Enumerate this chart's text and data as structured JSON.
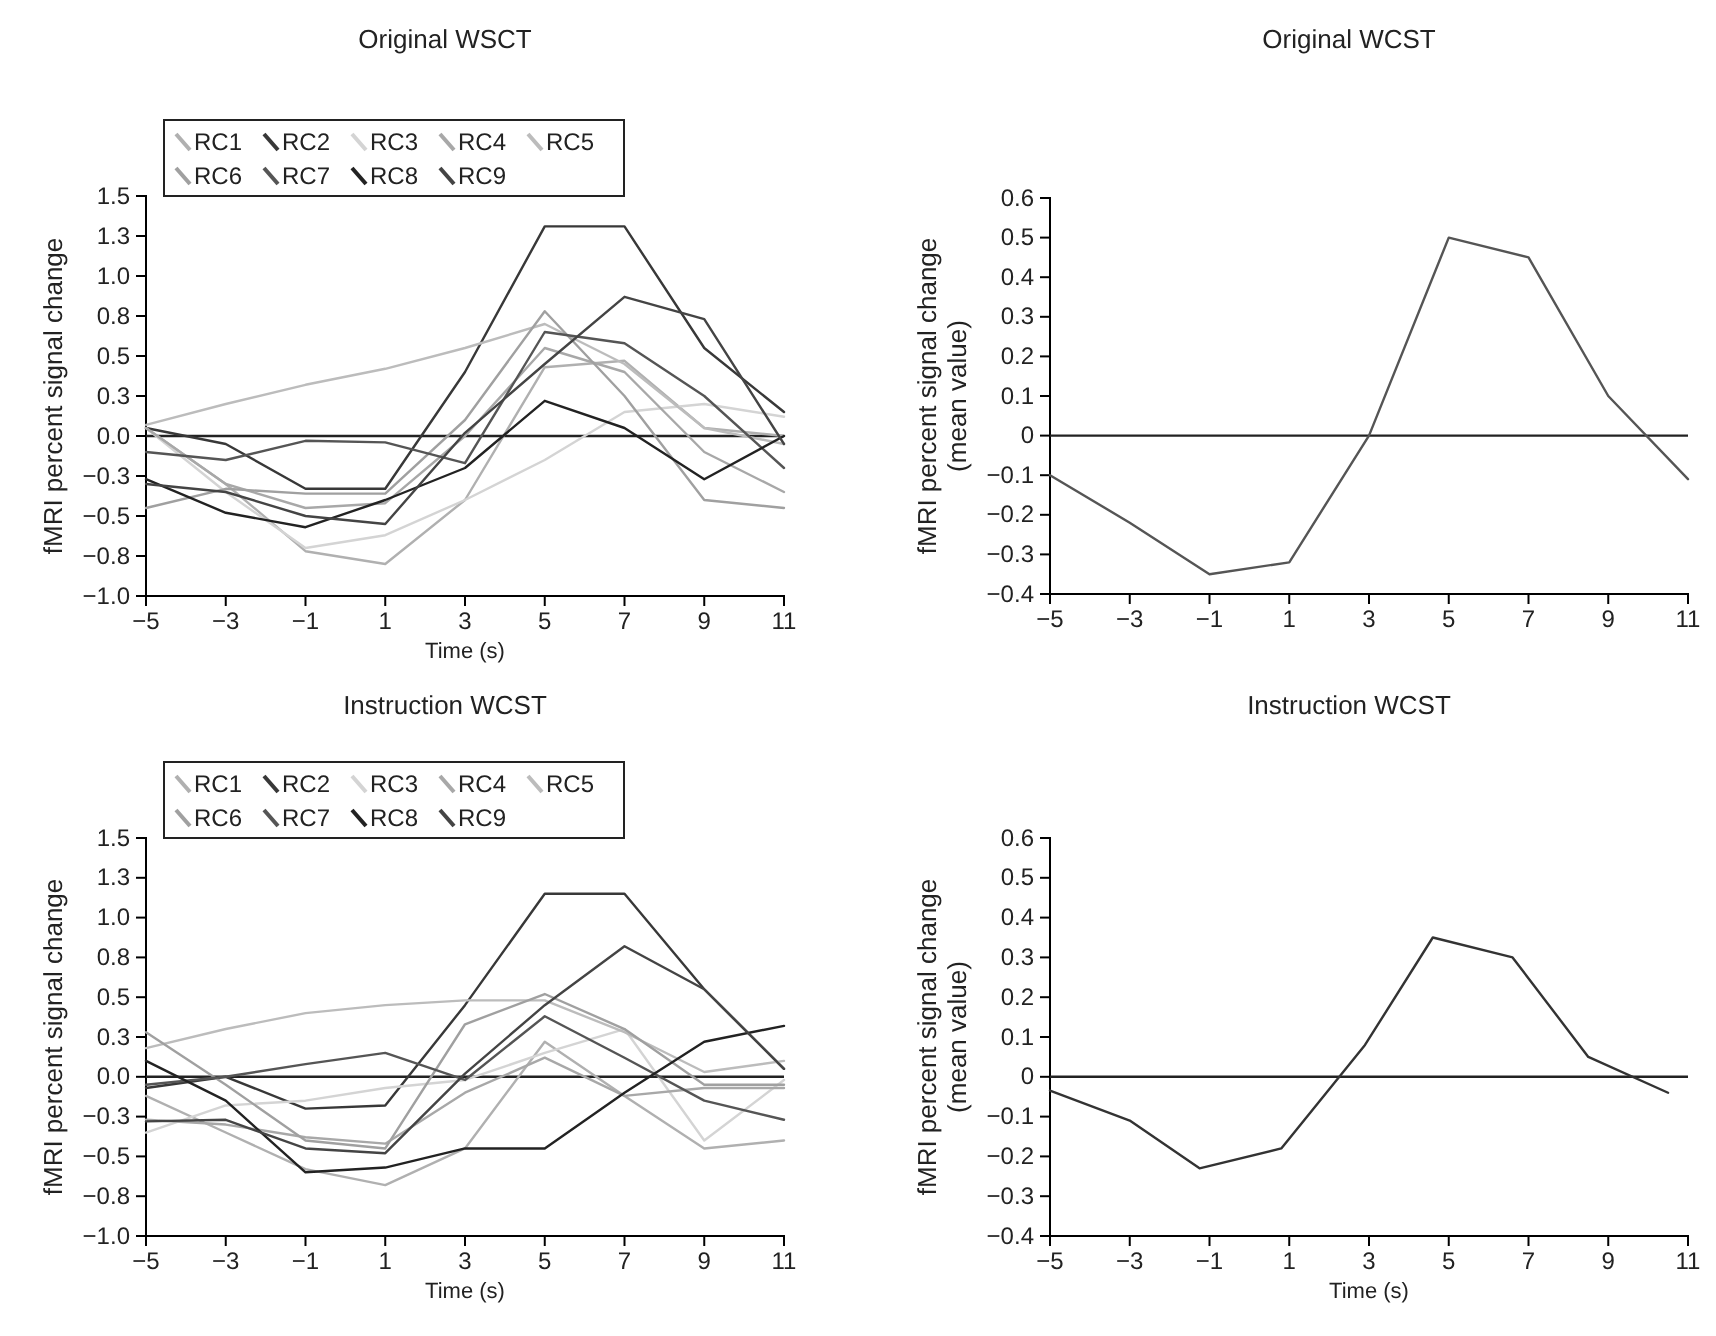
{
  "chart_data": [
    {
      "type": "line",
      "title": "Original WSCT",
      "xlabel": "Time (s)",
      "ylabel": "fMRI percent signal change",
      "x": [
        -5,
        -3,
        -1,
        1,
        3,
        5,
        7,
        9,
        11
      ],
      "xlim": [
        -5,
        11
      ],
      "xticks": [
        -5,
        -3,
        -1,
        1,
        3,
        5,
        7,
        9,
        11
      ],
      "ylim": [
        -1,
        1.5
      ],
      "yticks": [
        {
          "value": -1,
          "label": "−1.0"
        },
        {
          "value": -0.75,
          "label": "−0.8"
        },
        {
          "value": -0.5,
          "label": "−0.5"
        },
        {
          "value": -0.25,
          "label": "−0.3"
        },
        {
          "value": 0,
          "label": "0.0"
        },
        {
          "value": 0.25,
          "label": "0.3"
        },
        {
          "value": 0.5,
          "label": "0.5"
        },
        {
          "value": 0.75,
          "label": "0.8"
        },
        {
          "value": 1,
          "label": "1.0"
        },
        {
          "value": 1.25,
          "label": "1.3"
        },
        {
          "value": 1.5,
          "label": "1.5"
        }
      ],
      "legend": "top left",
      "ref_lines": [
        {
          "axis": "y",
          "value": 0,
          "color": "#222222"
        }
      ],
      "series": [
        {
          "name": "RC1",
          "color": "#b0b0b0",
          "values": [
            0.05,
            -0.3,
            -0.72,
            -0.8,
            -0.4,
            0.43,
            0.47,
            0.05,
            0.0
          ]
        },
        {
          "name": "RC2",
          "color": "#383838",
          "values": [
            0.05,
            -0.05,
            -0.33,
            -0.33,
            0.4,
            1.31,
            1.31,
            0.55,
            0.15
          ]
        },
        {
          "name": "RC3",
          "color": "#d4d4d4",
          "values": [
            0.05,
            -0.35,
            -0.7,
            -0.62,
            -0.4,
            -0.15,
            0.15,
            0.2,
            0.12
          ]
        },
        {
          "name": "RC4",
          "color": "#a8a8a8",
          "values": [
            0.05,
            -0.3,
            -0.45,
            -0.42,
            0.0,
            0.55,
            0.4,
            -0.1,
            -0.35
          ]
        },
        {
          "name": "RC5",
          "color": "#bcbcbc",
          "values": [
            0.07,
            0.2,
            0.32,
            0.42,
            0.55,
            0.7,
            0.45,
            0.05,
            -0.05
          ]
        },
        {
          "name": "RC6",
          "color": "#a0a0a0",
          "values": [
            -0.45,
            -0.33,
            -0.36,
            -0.36,
            0.1,
            0.78,
            0.25,
            -0.4,
            -0.45
          ]
        },
        {
          "name": "RC7",
          "color": "#555555",
          "values": [
            -0.1,
            -0.15,
            -0.03,
            -0.04,
            -0.17,
            0.65,
            0.58,
            0.25,
            -0.2
          ]
        },
        {
          "name": "RC8",
          "color": "#222222",
          "values": [
            -0.27,
            -0.48,
            -0.57,
            -0.4,
            -0.2,
            0.22,
            0.05,
            -0.27,
            0.0
          ]
        },
        {
          "name": "RC9",
          "color": "#444444",
          "values": [
            -0.3,
            -0.35,
            -0.5,
            -0.55,
            0.02,
            0.45,
            0.87,
            0.73,
            -0.05
          ]
        }
      ]
    },
    {
      "type": "line",
      "title": "Original WCST",
      "ylabel": "fMRI percent signal change\n(mean value)",
      "x": [
        -5,
        -3,
        -1,
        1,
        3,
        5,
        7,
        9,
        11
      ],
      "xlim": [
        -5,
        11
      ],
      "xticks": [
        -5,
        -3,
        -1,
        1,
        3,
        5,
        7,
        9,
        11
      ],
      "ylim": [
        -0.4,
        0.6
      ],
      "yticks": [
        -0.4,
        -0.3,
        -0.2,
        -0.1,
        0,
        0.1,
        0.2,
        0.3,
        0.4,
        0.5,
        0.6
      ],
      "ref_lines": [
        {
          "axis": "y",
          "value": 0,
          "color": "#222222"
        }
      ],
      "series": [
        {
          "color": "#555555",
          "values": [
            -0.1,
            -0.22,
            -0.35,
            -0.32,
            0.0,
            0.5,
            0.45,
            0.1,
            -0.11
          ]
        }
      ]
    },
    {
      "type": "line",
      "title": "Instruction WCST",
      "xlabel": "Time (s)",
      "ylabel": "fMRI percent signal change",
      "x": [
        -5,
        -3,
        -1,
        1,
        3,
        5,
        7,
        9,
        11
      ],
      "xlim": [
        -5,
        11
      ],
      "xticks": [
        -5,
        -3,
        -1,
        1,
        3,
        5,
        7,
        9,
        11
      ],
      "ylim": [
        -1,
        1.5
      ],
      "yticks": [
        {
          "value": -1,
          "label": "−1.0"
        },
        {
          "value": -0.75,
          "label": "−0.8"
        },
        {
          "value": -0.5,
          "label": "−0.5"
        },
        {
          "value": -0.25,
          "label": "−0.3"
        },
        {
          "value": 0,
          "label": "0.0"
        },
        {
          "value": 0.25,
          "label": "0.3"
        },
        {
          "value": 0.5,
          "label": "0.5"
        },
        {
          "value": 0.75,
          "label": "0.8"
        },
        {
          "value": 1,
          "label": "1.0"
        },
        {
          "value": 1.25,
          "label": "1.3"
        },
        {
          "value": 1.5,
          "label": "1.5"
        }
      ],
      "legend": "top left",
      "ref_lines": [
        {
          "axis": "y",
          "value": 0,
          "color": "#222222"
        }
      ],
      "series": [
        {
          "name": "RC1",
          "color": "#b0b0b0",
          "values": [
            -0.12,
            -0.35,
            -0.58,
            -0.68,
            -0.45,
            0.22,
            -0.12,
            -0.45,
            -0.4
          ]
        },
        {
          "name": "RC2",
          "color": "#383838",
          "values": [
            -0.07,
            0.0,
            -0.2,
            -0.18,
            0.45,
            1.15,
            1.15,
            0.55,
            0.05
          ]
        },
        {
          "name": "RC3",
          "color": "#d4d4d4",
          "values": [
            -0.35,
            -0.18,
            -0.15,
            -0.07,
            -0.02,
            0.15,
            0.3,
            -0.4,
            -0.02
          ]
        },
        {
          "name": "RC4",
          "color": "#a8a8a8",
          "values": [
            -0.27,
            -0.3,
            -0.38,
            -0.42,
            -0.1,
            0.12,
            -0.12,
            -0.07,
            -0.07
          ]
        },
        {
          "name": "RC5",
          "color": "#bcbcbc",
          "values": [
            0.18,
            0.3,
            0.4,
            0.45,
            0.48,
            0.48,
            0.28,
            0.03,
            0.1
          ]
        },
        {
          "name": "RC6",
          "color": "#a0a0a0",
          "values": [
            0.28,
            -0.05,
            -0.4,
            -0.45,
            0.33,
            0.52,
            0.3,
            -0.05,
            -0.05
          ]
        },
        {
          "name": "RC7",
          "color": "#555555",
          "values": [
            -0.05,
            0.0,
            0.08,
            0.15,
            -0.02,
            0.38,
            0.12,
            -0.15,
            -0.27
          ]
        },
        {
          "name": "RC8",
          "color": "#222222",
          "values": [
            0.1,
            -0.15,
            -0.6,
            -0.57,
            -0.45,
            -0.45,
            -0.1,
            0.22,
            0.32
          ]
        },
        {
          "name": "RC9",
          "color": "#444444",
          "values": [
            -0.28,
            -0.27,
            -0.45,
            -0.48,
            0.02,
            0.45,
            0.82,
            0.55,
            0.05
          ]
        }
      ]
    },
    {
      "type": "line",
      "title": "Instruction WCST",
      "xlabel": "Time (s)",
      "ylabel": "fMRI percent signal change\n(mean value)",
      "x": [
        -5,
        -3,
        -1.25,
        0.8,
        2.9,
        4.6,
        6.6,
        8.5,
        10.5
      ],
      "xlim": [
        -5,
        11
      ],
      "xticks": [
        -5,
        -3,
        -1,
        1,
        3,
        5,
        7,
        9,
        11
      ],
      "ylim": [
        -0.4,
        0.6
      ],
      "yticks": [
        -0.4,
        -0.3,
        -0.2,
        -0.1,
        0,
        0.1,
        0.2,
        0.3,
        0.4,
        0.5,
        0.6
      ],
      "ref_lines": [
        {
          "axis": "y",
          "value": 0,
          "color": "#222222"
        }
      ],
      "series": [
        {
          "color": "#333333",
          "values": [
            -0.035,
            -0.11,
            -0.23,
            -0.18,
            0.08,
            0.35,
            0.3,
            0.05,
            -0.04
          ]
        }
      ]
    }
  ]
}
